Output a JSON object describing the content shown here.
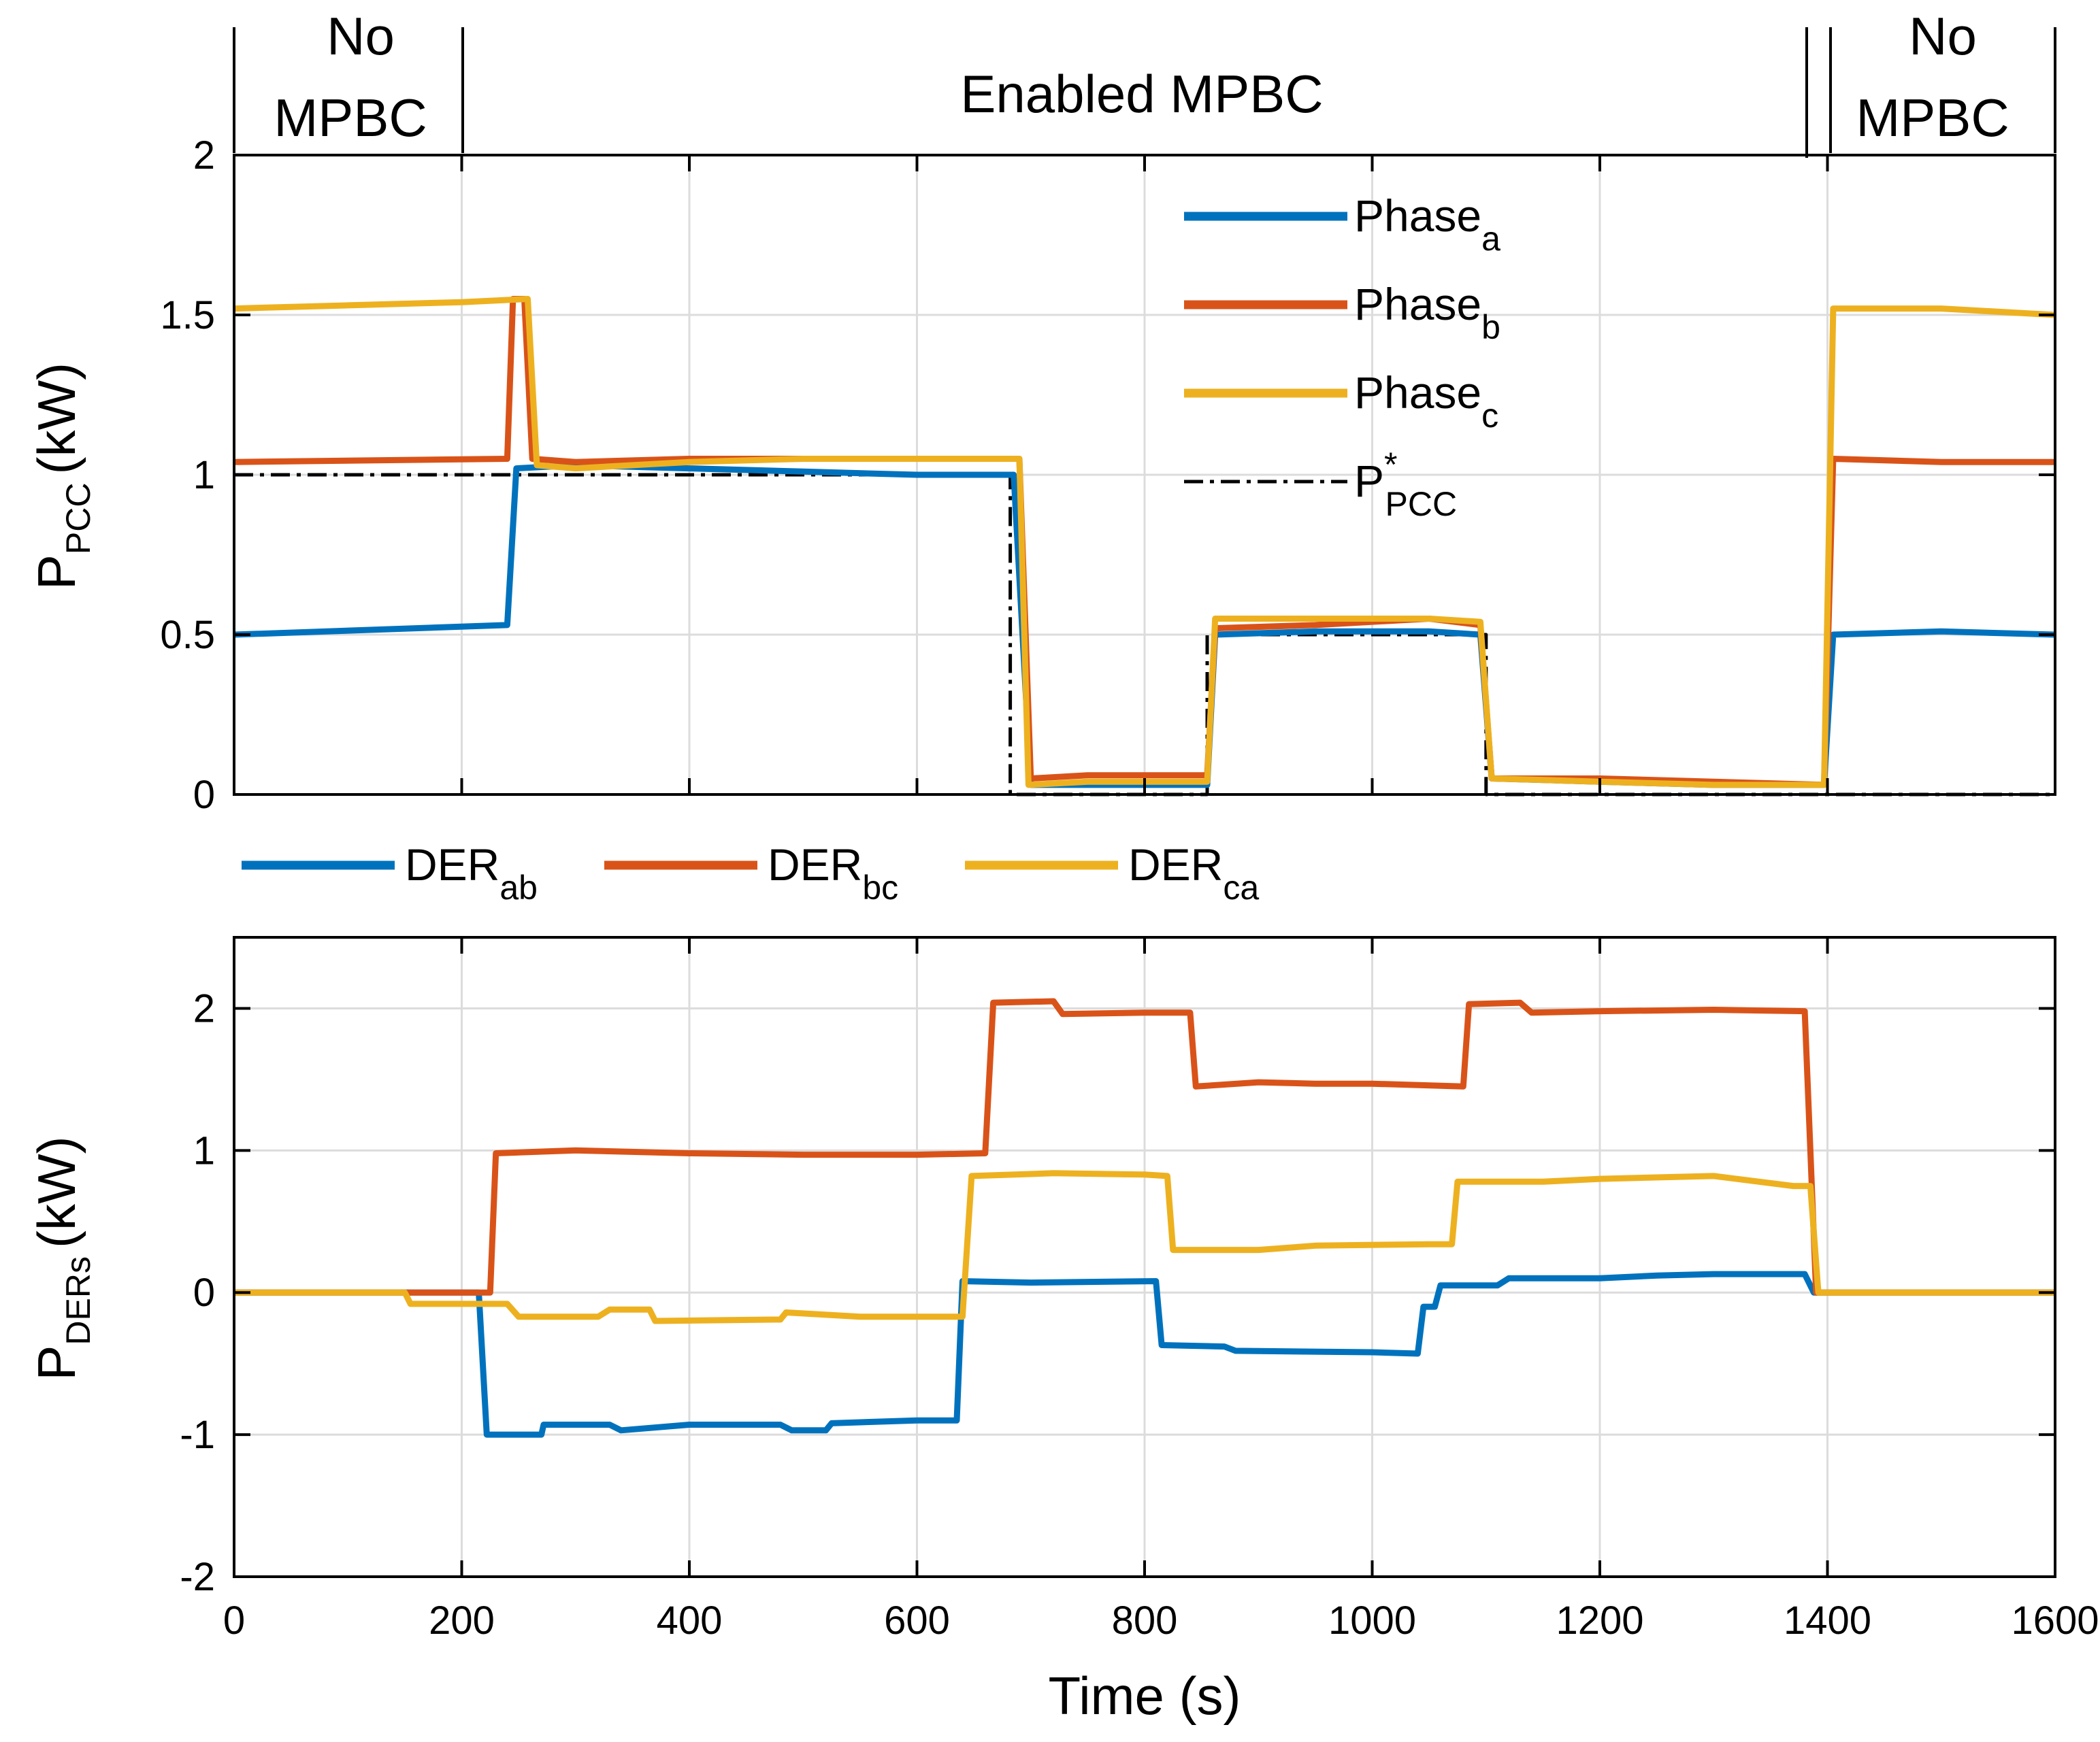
{
  "chart_data": [
    {
      "type": "line",
      "name": "pcc-power",
      "ylabel": "P",
      "ylabel_sub": "PCC",
      "ylabel_unit": "(kW)",
      "xlim": [
        0,
        1600
      ],
      "ylim": [
        0,
        2
      ],
      "xticks": [
        0,
        200,
        400,
        600,
        800,
        1000,
        1200,
        1400,
        1600
      ],
      "yticks": [
        0,
        0.5,
        1,
        1.5,
        2
      ],
      "ytick_labels": [
        "0",
        "0.5",
        "1",
        "1.5",
        "2"
      ],
      "grid": true,
      "legend_position": "top-center",
      "legend": [
        {
          "label": "Phase",
          "sub": "a",
          "sup": "",
          "color": "#0072BD",
          "style": "solid"
        },
        {
          "label": "Phase",
          "sub": "b",
          "sup": "",
          "color": "#D95319",
          "style": "solid"
        },
        {
          "label": "Phase",
          "sub": "c",
          "sup": "",
          "color": "#EDB120",
          "style": "solid"
        },
        {
          "label": "P",
          "sub": "PCC",
          "sup": "*",
          "color": "#000000",
          "style": "dashdot"
        }
      ],
      "series": [
        {
          "name": "Phase_a",
          "color": "#0072BD",
          "points": [
            [
              0,
              0.5
            ],
            [
              240,
              0.53
            ],
            [
              248,
              1.02
            ],
            [
              300,
              1.03
            ],
            [
              400,
              1.02
            ],
            [
              500,
              1.01
            ],
            [
              600,
              1.0
            ],
            [
              675,
              1.0
            ],
            [
              685,
              1.0
            ],
            [
              700,
              0.03
            ],
            [
              750,
              0.03
            ],
            [
              855,
              0.03
            ],
            [
              862,
              0.5
            ],
            [
              950,
              0.51
            ],
            [
              1050,
              0.51
            ],
            [
              1095,
              0.5
            ],
            [
              1105,
              0.05
            ],
            [
              1200,
              0.04
            ],
            [
              1300,
              0.03
            ],
            [
              1397,
              0.03
            ],
            [
              1405,
              0.5
            ],
            [
              1500,
              0.51
            ],
            [
              1600,
              0.5
            ]
          ]
        },
        {
          "name": "Phase_b",
          "color": "#D95319",
          "points": [
            [
              0,
              1.04
            ],
            [
              240,
              1.05
            ],
            [
              245,
              1.55
            ],
            [
              255,
              1.55
            ],
            [
              262,
              1.05
            ],
            [
              300,
              1.04
            ],
            [
              400,
              1.05
            ],
            [
              500,
              1.05
            ],
            [
              600,
              1.05
            ],
            [
              690,
              1.05
            ],
            [
              700,
              0.05
            ],
            [
              750,
              0.06
            ],
            [
              855,
              0.06
            ],
            [
              862,
              0.52
            ],
            [
              950,
              0.53
            ],
            [
              1050,
              0.55
            ],
            [
              1095,
              0.53
            ],
            [
              1105,
              0.05
            ],
            [
              1200,
              0.05
            ],
            [
              1300,
              0.04
            ],
            [
              1397,
              0.03
            ],
            [
              1405,
              1.05
            ],
            [
              1500,
              1.04
            ],
            [
              1600,
              1.04
            ]
          ]
        },
        {
          "name": "Phase_c",
          "color": "#EDB120",
          "points": [
            [
              0,
              1.52
            ],
            [
              100,
              1.53
            ],
            [
              200,
              1.54
            ],
            [
              258,
              1.55
            ],
            [
              266,
              1.03
            ],
            [
              300,
              1.02
            ],
            [
              400,
              1.04
            ],
            [
              500,
              1.05
            ],
            [
              600,
              1.05
            ],
            [
              690,
              1.05
            ],
            [
              698,
              0.03
            ],
            [
              750,
              0.04
            ],
            [
              855,
              0.04
            ],
            [
              862,
              0.55
            ],
            [
              950,
              0.55
            ],
            [
              1050,
              0.55
            ],
            [
              1095,
              0.54
            ],
            [
              1105,
              0.05
            ],
            [
              1200,
              0.04
            ],
            [
              1300,
              0.03
            ],
            [
              1397,
              0.03
            ],
            [
              1405,
              1.52
            ],
            [
              1500,
              1.52
            ],
            [
              1600,
              1.5
            ]
          ]
        },
        {
          "name": "P_PCC*",
          "color": "#000000",
          "points": [
            [
              0,
              1.0
            ],
            [
              682,
              1.0
            ],
            [
              682,
              0.0
            ],
            [
              855,
              0.0
            ],
            [
              855,
              0.5
            ],
            [
              1100,
              0.5
            ],
            [
              1100,
              0.0
            ],
            [
              1600,
              0.0
            ]
          ]
        }
      ]
    },
    {
      "type": "line",
      "name": "der-power",
      "ylabel": "P",
      "ylabel_sub": "DERs",
      "ylabel_unit": "(kW)",
      "xlabel": "Time (s)",
      "xlim": [
        0,
        1600
      ],
      "ylim": [
        -2,
        2.5
      ],
      "xticks": [
        0,
        200,
        400,
        600,
        800,
        1000,
        1200,
        1400,
        1600
      ],
      "yticks": [
        -2,
        -1,
        0,
        1,
        2
      ],
      "ytick_labels": [
        "-2",
        "-1",
        "0",
        "1",
        "2"
      ],
      "grid": true,
      "legend_position": "top-outside",
      "legend": [
        {
          "label": "DER",
          "sub": "ab",
          "color": "#0072BD"
        },
        {
          "label": "DER",
          "sub": "bc",
          "color": "#D95319"
        },
        {
          "label": "DER",
          "sub": "ca",
          "color": "#EDB120"
        }
      ],
      "series": [
        {
          "name": "DER_ab",
          "color": "#0072BD",
          "points": [
            [
              0,
              0
            ],
            [
              215,
              0
            ],
            [
              222,
              -1.0
            ],
            [
              270,
              -1.0
            ],
            [
              272,
              -0.93
            ],
            [
              330,
              -0.93
            ],
            [
              340,
              -0.97
            ],
            [
              400,
              -0.93
            ],
            [
              480,
              -0.93
            ],
            [
              490,
              -0.97
            ],
            [
              520,
              -0.97
            ],
            [
              525,
              -0.92
            ],
            [
              600,
              -0.9
            ],
            [
              635,
              -0.9
            ],
            [
              640,
              0.08
            ],
            [
              700,
              0.07
            ],
            [
              810,
              0.08
            ],
            [
              815,
              -0.37
            ],
            [
              870,
              -0.38
            ],
            [
              880,
              -0.41
            ],
            [
              1000,
              -0.42
            ],
            [
              1040,
              -0.43
            ],
            [
              1045,
              -0.1
            ],
            [
              1055,
              -0.1
            ],
            [
              1060,
              0.05
            ],
            [
              1110,
              0.05
            ],
            [
              1120,
              0.1
            ],
            [
              1200,
              0.1
            ],
            [
              1250,
              0.12
            ],
            [
              1300,
              0.13
            ],
            [
              1380,
              0.13
            ],
            [
              1388,
              0
            ],
            [
              1600,
              0
            ]
          ]
        },
        {
          "name": "DER_bc",
          "color": "#D95319",
          "points": [
            [
              0,
              0
            ],
            [
              150,
              0
            ],
            [
              160,
              0
            ],
            [
              225,
              0
            ],
            [
              230,
              0.98
            ],
            [
              300,
              1.0
            ],
            [
              400,
              0.98
            ],
            [
              500,
              0.97
            ],
            [
              600,
              0.97
            ],
            [
              660,
              0.98
            ],
            [
              667,
              2.04
            ],
            [
              720,
              2.05
            ],
            [
              728,
              1.96
            ],
            [
              800,
              1.97
            ],
            [
              840,
              1.97
            ],
            [
              845,
              1.45
            ],
            [
              900,
              1.48
            ],
            [
              950,
              1.47
            ],
            [
              1000,
              1.47
            ],
            [
              1080,
              1.45
            ],
            [
              1085,
              2.03
            ],
            [
              1130,
              2.04
            ],
            [
              1140,
              1.97
            ],
            [
              1200,
              1.98
            ],
            [
              1300,
              1.99
            ],
            [
              1380,
              1.98
            ],
            [
              1390,
              0
            ],
            [
              1600,
              0
            ]
          ]
        },
        {
          "name": "DER_ca",
          "color": "#EDB120",
          "points": [
            [
              0,
              0
            ],
            [
              150,
              0
            ],
            [
              155,
              -0.08
            ],
            [
              240,
              -0.08
            ],
            [
              250,
              -0.17
            ],
            [
              320,
              -0.17
            ],
            [
              330,
              -0.12
            ],
            [
              365,
              -0.12
            ],
            [
              370,
              -0.2
            ],
            [
              480,
              -0.19
            ],
            [
              485,
              -0.14
            ],
            [
              550,
              -0.17
            ],
            [
              640,
              -0.17
            ],
            [
              648,
              0.82
            ],
            [
              720,
              0.84
            ],
            [
              800,
              0.83
            ],
            [
              820,
              0.82
            ],
            [
              825,
              0.3
            ],
            [
              900,
              0.3
            ],
            [
              950,
              0.33
            ],
            [
              1050,
              0.34
            ],
            [
              1070,
              0.34
            ],
            [
              1075,
              0.78
            ],
            [
              1150,
              0.78
            ],
            [
              1200,
              0.8
            ],
            [
              1300,
              0.82
            ],
            [
              1370,
              0.75
            ],
            [
              1385,
              0.75
            ],
            [
              1392,
              0
            ],
            [
              1600,
              0
            ]
          ]
        }
      ]
    }
  ],
  "banner": {
    "left_label_1": "No",
    "left_label_2": "MPBC",
    "center_label": "Enabled MPBC",
    "right_label_1": "No",
    "right_label_2": "MPBC"
  },
  "colors": {
    "blue": "#0072BD",
    "orange": "#D95319",
    "yellow": "#EDB120",
    "black": "#000000",
    "grid": "#dcdcdc"
  }
}
